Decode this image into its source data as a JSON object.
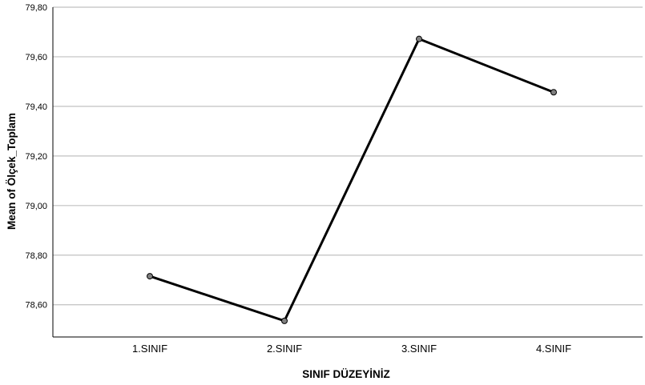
{
  "chart_data": {
    "type": "line",
    "categories": [
      "1.SINIF",
      "2.SINIF",
      "3.SINIF",
      "4.SINIF"
    ],
    "series": [
      {
        "values": [
          78.715,
          78.535,
          79.672,
          79.457
        ]
      }
    ],
    "ylim": [
      78.47,
      79.8
    ],
    "yticks": [
      78.6,
      78.8,
      79.0,
      79.2,
      79.4,
      79.6,
      79.8
    ],
    "ytick_labels": [
      "78,60",
      "78,80",
      "79,00",
      "79,20",
      "79,40",
      "79,60",
      "79,80"
    ],
    "xlabel": "SINIF DÜZEYİNİZ",
    "ylabel": "Mean of Ölçek_Toplam",
    "grid": true,
    "colors": {
      "line": "#000000",
      "marker_fill": "#7f7f7f",
      "gridline": "#c0c0c0"
    }
  }
}
